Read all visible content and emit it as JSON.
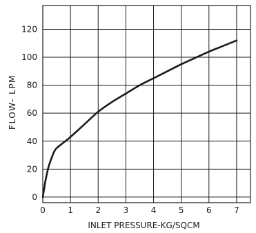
{
  "chart_data": {
    "type": "line",
    "title": "",
    "xlabel": "INLET PRESSURE-KG/SQCM",
    "ylabel": "FLOW- LPM",
    "xlim": [
      0,
      7.5
    ],
    "ylim": [
      -4,
      137
    ],
    "x_ticks": [
      0,
      1,
      2,
      3,
      4,
      5,
      6,
      7
    ],
    "y_ticks": [
      0,
      20,
      40,
      60,
      80,
      100,
      120
    ],
    "grid": true,
    "series": [
      {
        "color": "#1a1a1a",
        "x": [
          0,
          0.05,
          0.1,
          0.2,
          0.3,
          0.4,
          0.5,
          0.75,
          1,
          1.5,
          2,
          2.5,
          3,
          3.5,
          4,
          4.5,
          5,
          5.5,
          6,
          6.5,
          7
        ],
        "y": [
          0,
          6,
          12,
          21,
          27,
          32,
          35,
          39,
          43,
          52,
          61,
          68,
          74,
          80,
          85,
          90,
          95,
          99.5,
          104,
          108,
          112
        ]
      }
    ]
  }
}
